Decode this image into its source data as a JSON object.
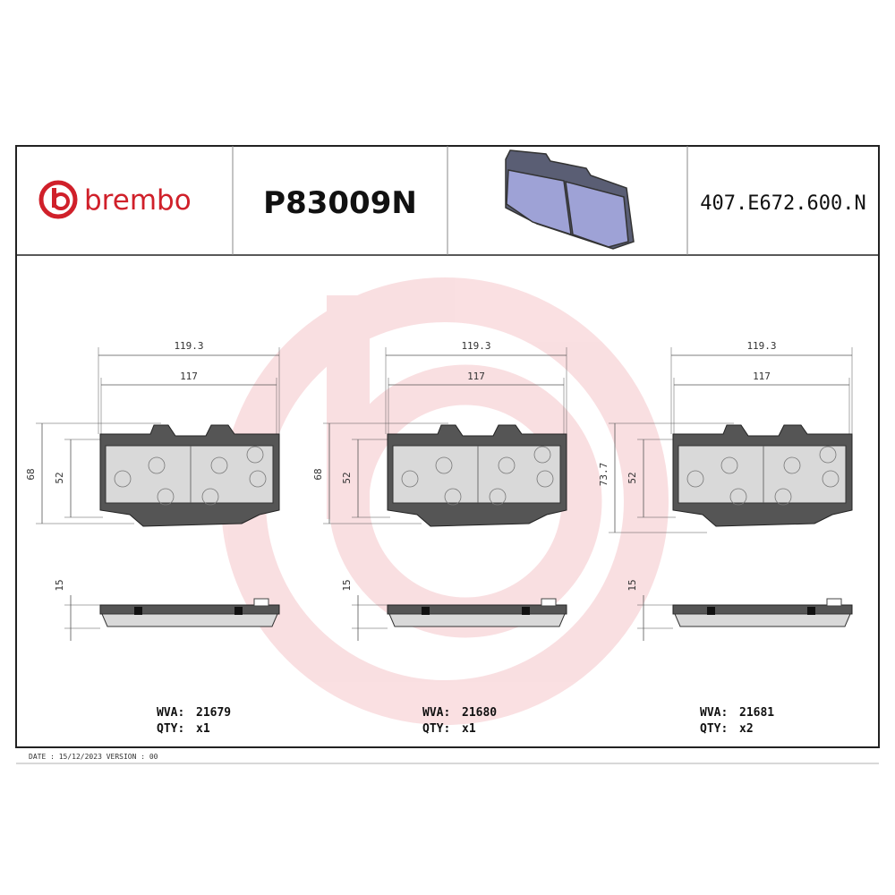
{
  "header": {
    "brand": "brembo",
    "part_number": "P83009N",
    "code": "407.E672.600.N"
  },
  "drawings": [
    {
      "width_outer": 119.3,
      "width_inner": 117,
      "height_outer": 68,
      "height_inner": 52,
      "thickness": 15,
      "wva_label": "WVA:",
      "wva": 21679,
      "qty_label": "QTY:",
      "qty": "x1"
    },
    {
      "width_outer": 119.3,
      "width_inner": 117,
      "height_outer": 68,
      "height_inner": 52,
      "thickness": 15,
      "wva_label": "WVA:",
      "wva": 21680,
      "qty_label": "QTY:",
      "qty": "x1"
    },
    {
      "width_outer": 119.3,
      "width_inner": 117,
      "height_outer": 73.7,
      "height_inner": 52,
      "thickness": 15,
      "wva_label": "WVA:",
      "wva": 21681,
      "qty_label": "QTY:",
      "qty": "x2"
    }
  ],
  "footer": {
    "date": "DATE : 15/12/2023 VERSION : 00"
  }
}
